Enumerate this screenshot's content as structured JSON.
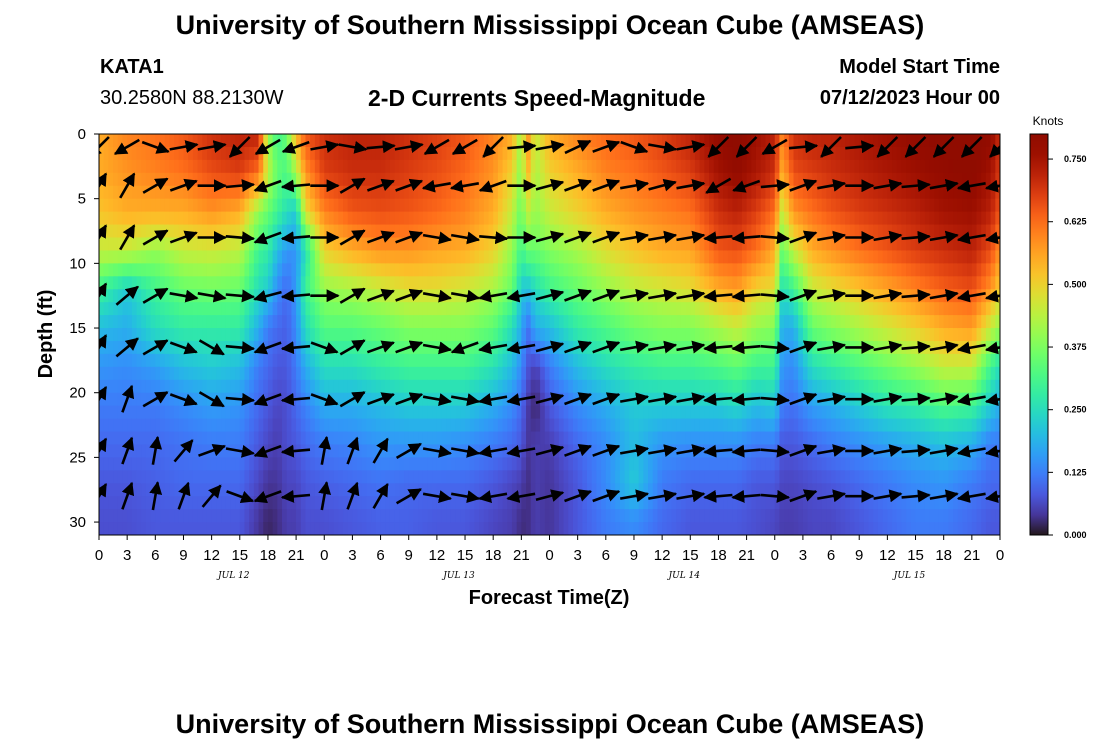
{
  "title": "University of Southern Mississippi Ocean Cube (AMSEAS)",
  "footer_title": "University of Southern Mississippi Ocean Cube (AMSEAS)",
  "station": "KATA1",
  "coordinates": "30.2580N  88.2130W",
  "subtitle": "2-D Currents Speed-Magnitude",
  "model_start_label": "Model Start Time",
  "model_start_value": "07/12/2023 Hour 00",
  "chart_data": {
    "type": "heatmap",
    "xlabel": "Forecast Time(Z)",
    "ylabel": "Depth (ft)",
    "x_ticks": [
      "0",
      "3",
      "6",
      "9",
      "12",
      "15",
      "18",
      "21",
      "0",
      "3",
      "6",
      "9",
      "12",
      "15",
      "18",
      "21",
      "0",
      "3",
      "6",
      "9",
      "12",
      "15",
      "18",
      "21",
      "0",
      "3",
      "6",
      "9",
      "12",
      "15",
      "18",
      "21",
      "0"
    ],
    "day_labels": [
      "JUL 12",
      "JUL 13",
      "JUL 14",
      "JUL 15"
    ],
    "xlim_hours": [
      0,
      96
    ],
    "y_ticks": [
      0,
      5,
      10,
      15,
      20,
      25,
      30
    ],
    "ylim_ft": [
      0,
      31
    ],
    "y_inverted": true,
    "colorbar": {
      "unit": "Knots",
      "min": 0,
      "max": 0.8,
      "ticks": [
        "0.750",
        "0.625",
        "0.500",
        "0.375",
        "0.250",
        "0.125",
        "0.000"
      ],
      "colormap": "turbo"
    },
    "speed_profiles": {
      "hours": [
        0,
        3,
        6,
        9,
        12,
        15,
        17,
        18,
        19,
        20,
        21,
        22,
        24,
        27,
        30,
        33,
        36,
        39,
        42,
        44,
        45,
        45.6,
        46.5,
        48,
        51,
        54,
        57,
        60,
        63,
        66,
        68,
        70,
        72,
        72.8,
        74,
        76,
        78,
        81,
        84,
        87,
        90,
        93,
        95,
        96
      ],
      "depths_ft": [
        0,
        3,
        6,
        9,
        12,
        15,
        18,
        21,
        24,
        27,
        30,
        31
      ],
      "knots": [
        [
          0.55,
          0.55,
          0.52,
          0.45,
          0.3,
          0.2,
          0.15,
          0.12,
          0.1,
          0.08,
          0.07,
          0.07
        ],
        [
          0.6,
          0.58,
          0.55,
          0.45,
          0.22,
          0.18,
          0.14,
          0.12,
          0.1,
          0.08,
          0.07,
          0.07
        ],
        [
          0.62,
          0.6,
          0.55,
          0.4,
          0.3,
          0.25,
          0.16,
          0.12,
          0.1,
          0.09,
          0.08,
          0.08
        ],
        [
          0.65,
          0.62,
          0.55,
          0.45,
          0.35,
          0.28,
          0.2,
          0.14,
          0.11,
          0.1,
          0.08,
          0.08
        ],
        [
          0.7,
          0.66,
          0.58,
          0.46,
          0.36,
          0.28,
          0.22,
          0.16,
          0.12,
          0.1,
          0.08,
          0.08
        ],
        [
          0.72,
          0.68,
          0.55,
          0.44,
          0.35,
          0.28,
          0.2,
          0.15,
          0.12,
          0.1,
          0.08,
          0.08
        ],
        [
          0.72,
          0.62,
          0.4,
          0.3,
          0.25,
          0.18,
          0.12,
          0.1,
          0.08,
          0.06,
          0.04,
          0.04
        ],
        [
          0.4,
          0.45,
          0.35,
          0.28,
          0.22,
          0.12,
          0.1,
          0.08,
          0.06,
          0.04,
          0.02,
          0.02
        ],
        [
          0.3,
          0.35,
          0.3,
          0.2,
          0.14,
          0.1,
          0.08,
          0.06,
          0.05,
          0.04,
          0.03,
          0.03
        ],
        [
          0.35,
          0.32,
          0.25,
          0.15,
          0.1,
          0.09,
          0.08,
          0.07,
          0.07,
          0.06,
          0.05,
          0.05
        ],
        [
          0.55,
          0.42,
          0.22,
          0.15,
          0.16,
          0.14,
          0.12,
          0.1,
          0.08,
          0.06,
          0.05,
          0.05
        ],
        [
          0.65,
          0.58,
          0.48,
          0.25,
          0.3,
          0.25,
          0.18,
          0.13,
          0.1,
          0.08,
          0.07,
          0.07
        ],
        [
          0.7,
          0.68,
          0.6,
          0.5,
          0.4,
          0.33,
          0.25,
          0.18,
          0.12,
          0.09,
          0.07,
          0.07
        ],
        [
          0.72,
          0.7,
          0.65,
          0.55,
          0.42,
          0.33,
          0.25,
          0.18,
          0.13,
          0.1,
          0.08,
          0.08
        ],
        [
          0.72,
          0.7,
          0.66,
          0.58,
          0.45,
          0.35,
          0.28,
          0.2,
          0.15,
          0.11,
          0.09,
          0.09
        ],
        [
          0.7,
          0.68,
          0.65,
          0.58,
          0.48,
          0.38,
          0.3,
          0.22,
          0.15,
          0.1,
          0.09,
          0.09
        ],
        [
          0.68,
          0.66,
          0.63,
          0.56,
          0.48,
          0.38,
          0.3,
          0.22,
          0.15,
          0.1,
          0.08,
          0.08
        ],
        [
          0.65,
          0.63,
          0.6,
          0.55,
          0.46,
          0.38,
          0.3,
          0.22,
          0.14,
          0.1,
          0.08,
          0.08
        ],
        [
          0.6,
          0.58,
          0.55,
          0.5,
          0.42,
          0.34,
          0.26,
          0.18,
          0.12,
          0.08,
          0.06,
          0.06
        ],
        [
          0.55,
          0.5,
          0.45,
          0.4,
          0.35,
          0.25,
          0.2,
          0.14,
          0.1,
          0.06,
          0.05,
          0.05
        ],
        [
          0.4,
          0.38,
          0.35,
          0.3,
          0.22,
          0.18,
          0.14,
          0.1,
          0.08,
          0.05,
          0.03,
          0.03
        ],
        [
          0.6,
          0.55,
          0.45,
          0.35,
          0.2,
          0.1,
          0.08,
          0.05,
          0.04,
          0.03,
          0.03,
          0.03
        ],
        [
          0.45,
          0.42,
          0.4,
          0.35,
          0.25,
          0.18,
          0.05,
          0.02,
          0.05,
          0.05,
          0.05,
          0.05
        ],
        [
          0.55,
          0.5,
          0.45,
          0.38,
          0.3,
          0.2,
          0.12,
          0.08,
          0.05,
          0.04,
          0.04,
          0.04
        ],
        [
          0.6,
          0.55,
          0.5,
          0.42,
          0.35,
          0.28,
          0.2,
          0.14,
          0.1,
          0.08,
          0.08,
          0.08
        ],
        [
          0.63,
          0.6,
          0.55,
          0.48,
          0.4,
          0.32,
          0.25,
          0.18,
          0.14,
          0.14,
          0.12,
          0.12
        ],
        [
          0.65,
          0.62,
          0.58,
          0.52,
          0.44,
          0.36,
          0.28,
          0.22,
          0.2,
          0.22,
          0.14,
          0.14
        ],
        [
          0.68,
          0.65,
          0.6,
          0.55,
          0.46,
          0.38,
          0.3,
          0.22,
          0.15,
          0.12,
          0.1,
          0.1
        ],
        [
          0.72,
          0.68,
          0.62,
          0.56,
          0.48,
          0.38,
          0.3,
          0.22,
          0.14,
          0.1,
          0.08,
          0.08
        ],
        [
          0.78,
          0.75,
          0.7,
          0.65,
          0.55,
          0.42,
          0.32,
          0.22,
          0.14,
          0.1,
          0.08,
          0.08
        ],
        [
          0.8,
          0.78,
          0.72,
          0.66,
          0.57,
          0.45,
          0.34,
          0.24,
          0.14,
          0.1,
          0.08,
          0.08
        ],
        [
          0.76,
          0.74,
          0.68,
          0.62,
          0.5,
          0.4,
          0.3,
          0.2,
          0.12,
          0.08,
          0.07,
          0.07
        ],
        [
          0.72,
          0.7,
          0.62,
          0.55,
          0.48,
          0.38,
          0.3,
          0.22,
          0.12,
          0.08,
          0.06,
          0.06
        ],
        [
          0.6,
          0.55,
          0.45,
          0.35,
          0.25,
          0.18,
          0.15,
          0.12,
          0.08,
          0.06,
          0.05,
          0.05
        ],
        [
          0.7,
          0.66,
          0.58,
          0.45,
          0.3,
          0.18,
          0.14,
          0.11,
          0.08,
          0.06,
          0.05,
          0.05
        ],
        [
          0.72,
          0.68,
          0.62,
          0.55,
          0.45,
          0.35,
          0.25,
          0.16,
          0.1,
          0.07,
          0.06,
          0.06
        ],
        [
          0.72,
          0.7,
          0.65,
          0.58,
          0.48,
          0.38,
          0.28,
          0.18,
          0.12,
          0.08,
          0.06,
          0.06
        ],
        [
          0.74,
          0.72,
          0.68,
          0.62,
          0.52,
          0.42,
          0.32,
          0.22,
          0.14,
          0.1,
          0.08,
          0.08
        ],
        [
          0.76,
          0.74,
          0.7,
          0.65,
          0.56,
          0.46,
          0.36,
          0.26,
          0.16,
          0.12,
          0.1,
          0.1
        ],
        [
          0.78,
          0.76,
          0.72,
          0.68,
          0.6,
          0.5,
          0.4,
          0.28,
          0.18,
          0.14,
          0.12,
          0.12
        ],
        [
          0.8,
          0.78,
          0.75,
          0.7,
          0.64,
          0.55,
          0.45,
          0.32,
          0.2,
          0.15,
          0.12,
          0.12
        ],
        [
          0.82,
          0.8,
          0.76,
          0.72,
          0.66,
          0.57,
          0.45,
          0.3,
          0.18,
          0.12,
          0.1,
          0.1
        ],
        [
          0.78,
          0.75,
          0.72,
          0.66,
          0.58,
          0.45,
          0.3,
          0.22,
          0.12,
          0.1,
          0.08,
          0.08
        ],
        [
          0.7,
          0.68,
          0.65,
          0.58,
          0.5,
          0.4,
          0.25,
          0.18,
          0.12,
          0.1,
          0.08,
          0.08
        ]
      ]
    },
    "vector_rows_ft": [
      1,
      4,
      8,
      12.5,
      16.5,
      20.5,
      24.5,
      28
    ],
    "vector_hours": [
      0,
      3,
      6,
      9,
      12,
      15,
      18,
      21,
      24,
      27,
      30,
      33,
      36,
      39,
      42,
      45,
      48,
      51,
      54,
      57,
      60,
      63,
      66,
      69,
      72,
      75,
      78,
      81,
      84,
      87,
      90,
      93,
      96
    ],
    "vector_directions_deg": [
      [
        135,
        150,
        20,
        -10,
        -10,
        135,
        150,
        160,
        -10,
        10,
        -5,
        -10,
        150,
        150,
        135,
        -5,
        -10,
        -25,
        -20,
        20,
        10,
        -10,
        135,
        135,
        150,
        -5,
        135,
        -5,
        135,
        135,
        135,
        135,
        135
      ],
      [
        -60,
        -60,
        -30,
        -20,
        0,
        -5,
        160,
        175,
        0,
        -30,
        -20,
        -20,
        170,
        170,
        160,
        0,
        -15,
        -20,
        -20,
        -10,
        -15,
        -10,
        150,
        160,
        -5,
        -20,
        -10,
        0,
        -10,
        -5,
        -10,
        170,
        170
      ],
      [
        -60,
        -60,
        -30,
        -20,
        0,
        5,
        160,
        175,
        0,
        -30,
        -20,
        -20,
        10,
        10,
        5,
        0,
        -15,
        -20,
        -20,
        -10,
        -10,
        -10,
        175,
        175,
        5,
        -20,
        -10,
        0,
        -10,
        -5,
        -10,
        170,
        170
      ],
      [
        -60,
        -40,
        -30,
        10,
        10,
        5,
        165,
        175,
        0,
        -30,
        -20,
        -20,
        10,
        10,
        170,
        170,
        -15,
        -20,
        -20,
        -10,
        -10,
        -10,
        175,
        175,
        5,
        -20,
        -10,
        0,
        -10,
        -5,
        -10,
        170,
        170
      ],
      [
        -60,
        -40,
        -30,
        20,
        30,
        5,
        160,
        175,
        20,
        -30,
        -20,
        -20,
        10,
        160,
        170,
        170,
        -15,
        -20,
        -20,
        -10,
        -10,
        -10,
        175,
        175,
        5,
        -20,
        -10,
        0,
        -10,
        -5,
        -10,
        170,
        170
      ],
      [
        -60,
        -70,
        -30,
        20,
        30,
        5,
        160,
        175,
        20,
        -30,
        -20,
        -20,
        10,
        10,
        170,
        170,
        -15,
        -20,
        -20,
        -10,
        -10,
        -10,
        175,
        175,
        5,
        -20,
        -10,
        0,
        -10,
        -5,
        -10,
        170,
        170
      ],
      [
        -60,
        -70,
        -80,
        -50,
        -20,
        10,
        160,
        175,
        -80,
        -70,
        -60,
        -30,
        10,
        10,
        170,
        170,
        -15,
        -20,
        -20,
        -10,
        -10,
        -10,
        175,
        175,
        5,
        -20,
        -10,
        0,
        -10,
        -5,
        -10,
        170,
        170
      ],
      [
        -60,
        -70,
        -80,
        -70,
        -50,
        20,
        160,
        175,
        -80,
        -70,
        -60,
        -30,
        10,
        10,
        170,
        170,
        -15,
        -20,
        -20,
        -10,
        -10,
        -10,
        175,
        175,
        5,
        -20,
        -10,
        0,
        -10,
        -5,
        -10,
        170,
        170
      ]
    ]
  }
}
